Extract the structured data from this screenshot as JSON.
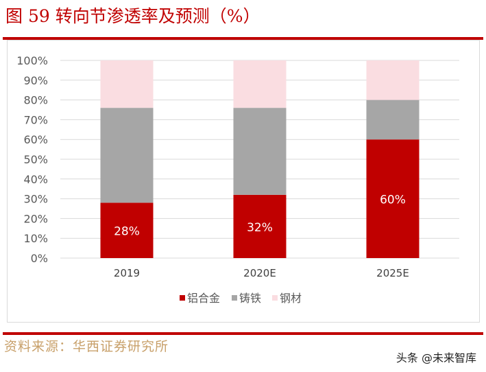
{
  "title": "图 59 转向节渗透率及预测（%）",
  "source": "资料来源：华西证券研究所",
  "watermark": "头条 @未来智库",
  "chart_data": {
    "type": "bar",
    "stacked": true,
    "categories": [
      "2019",
      "2020E",
      "2025E"
    ],
    "series": [
      {
        "name": "铝合金",
        "values": [
          28,
          32,
          60
        ],
        "color": "#c00000",
        "labels": [
          "28%",
          "32%",
          "60%"
        ]
      },
      {
        "name": "铸铁",
        "values": [
          48,
          44,
          20
        ],
        "color": "#a6a6a6"
      },
      {
        "name": "钢材",
        "values": [
          24,
          24,
          20
        ],
        "color": "#fadde1"
      }
    ],
    "yticks": [
      "0%",
      "10%",
      "20%",
      "30%",
      "40%",
      "50%",
      "60%",
      "70%",
      "80%",
      "90%",
      "100%"
    ],
    "ylim": [
      0,
      100
    ],
    "grid": true,
    "legend": "bottom"
  }
}
